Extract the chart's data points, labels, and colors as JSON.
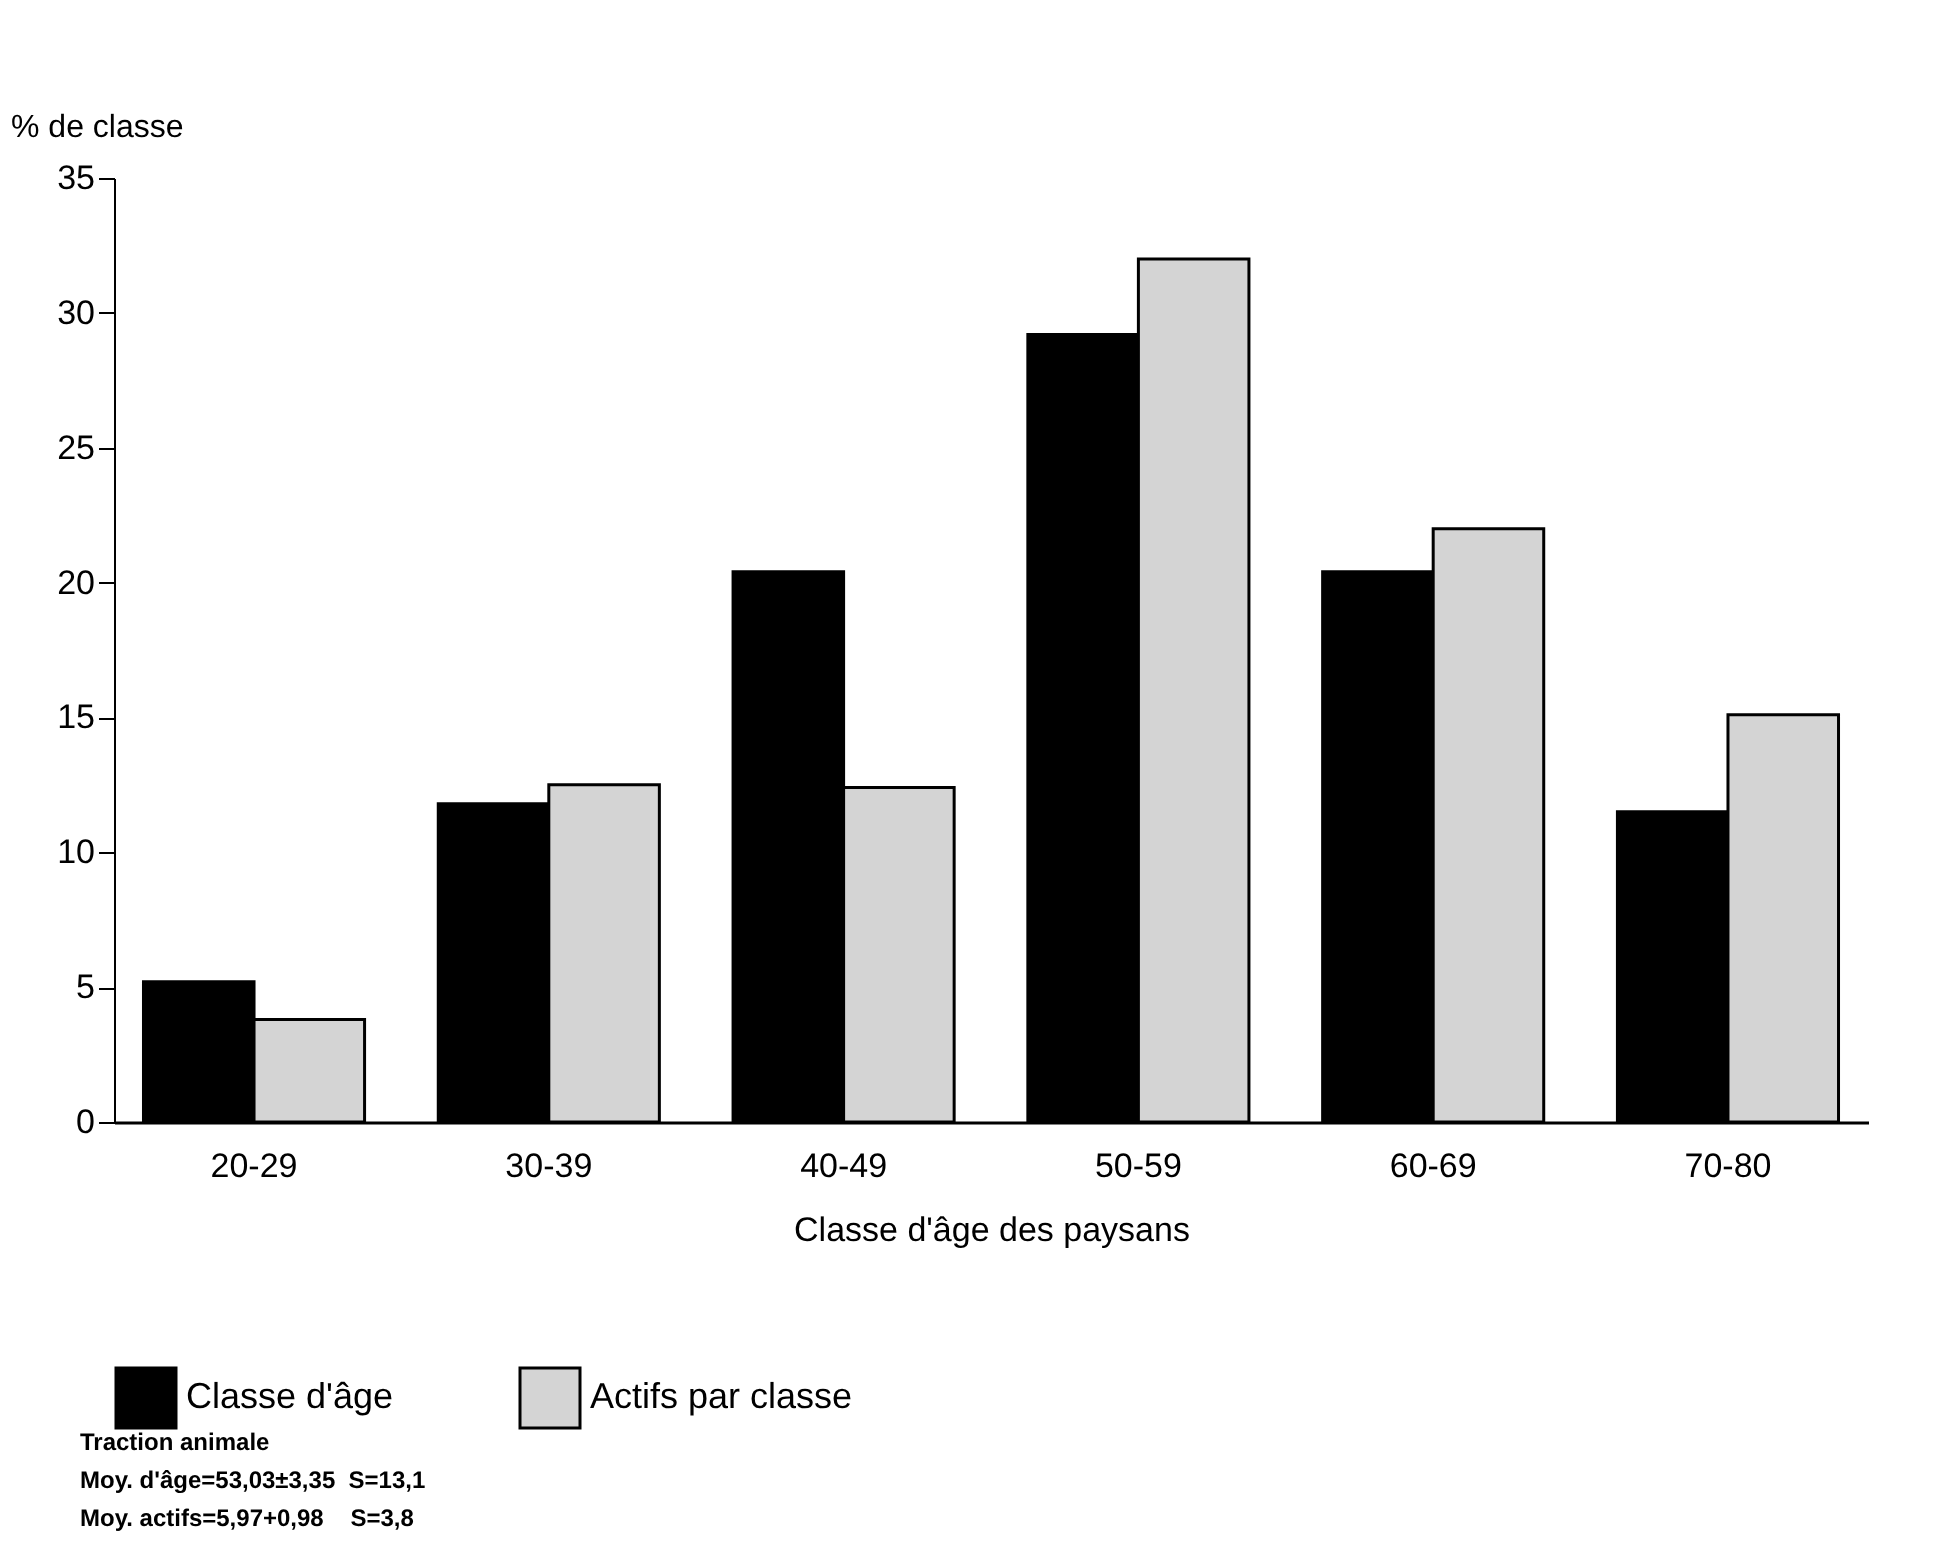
{
  "chart_data": {
    "type": "bar",
    "xlabel": "Classe d'âge des paysans",
    "ylabel": "% de classe",
    "categories": [
      "20-29",
      "30-39",
      "40-49",
      "50-59",
      "60-69",
      "70-80"
    ],
    "series": [
      {
        "name": "Classe d'âge",
        "color": "#000000",
        "values": [
          5.2,
          11.8,
          20.4,
          29.2,
          20.4,
          11.5
        ]
      },
      {
        "name": "Actifs par classe",
        "color": "#d4d4d4",
        "values": [
          3.8,
          12.5,
          12.4,
          32.0,
          22.0,
          15.1
        ]
      }
    ],
    "ylim": [
      0,
      35
    ],
    "yticks": [
      0,
      5,
      10,
      15,
      20,
      25,
      30,
      35
    ],
    "grid": false,
    "legend": "bottom",
    "annotations": [
      "Traction animale",
      "Moy. d'âge=53,03±3,35  S=13,1",
      "Moy. actifs=5,97+0,98    S=3,8"
    ]
  }
}
